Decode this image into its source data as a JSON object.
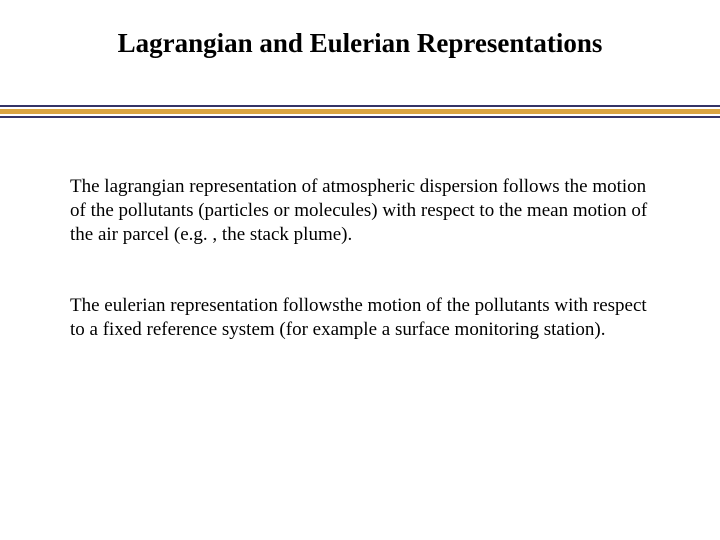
{
  "title": "Lagrangian and Eulerian Representations",
  "paragraphs": {
    "p1": "The lagrangian representation of atmospheric dispersion follows the motion of the pollutants (particles or molecules) with respect to the mean motion of the air parcel (e.g. , the stack plume).",
    "p2": "The eulerian representation followsthe motion of the pollutants with respect to a fixed reference system (for example a surface monitoring station)."
  },
  "style": {
    "background_color": "#ffffff",
    "text_color": "#000000",
    "title_fontsize": 27,
    "body_fontsize": 19,
    "divider_outer_color": "#333366",
    "divider_inner_color": "#d9a441"
  }
}
